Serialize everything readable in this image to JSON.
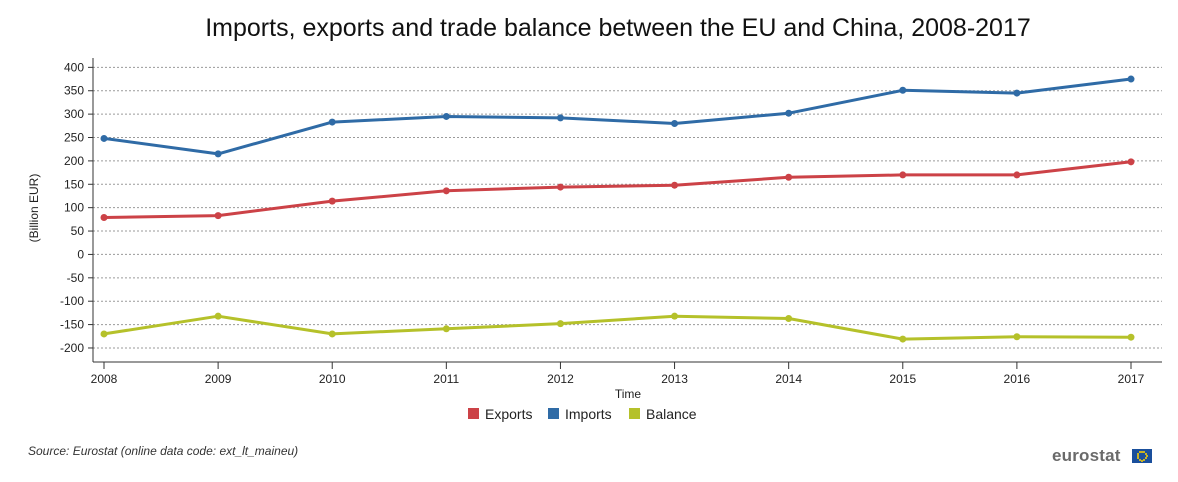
{
  "chart_data": {
    "type": "line",
    "title": "Imports, exports and trade balance between the EU and China, 2008-2017",
    "xlabel": "Time",
    "ylabel": "(Billion EUR)",
    "x": [
      "2008",
      "2009",
      "2010",
      "2011",
      "2012",
      "2013",
      "2014",
      "2015",
      "2016",
      "2017"
    ],
    "ylim": [
      -230,
      420
    ],
    "yticks": [
      400,
      350,
      300,
      250,
      200,
      150,
      100,
      50,
      0,
      -50,
      -100,
      -150,
      -200
    ],
    "grid": true,
    "legend_position": "bottom-center",
    "series": [
      {
        "name": "Exports",
        "color": "#cc4247",
        "values": [
          79,
          83,
          114,
          136,
          144,
          148,
          165,
          170,
          170,
          198
        ]
      },
      {
        "name": "Imports",
        "color": "#2f6ba6",
        "values": [
          248,
          215,
          283,
          295,
          292,
          280,
          302,
          351,
          345,
          375
        ]
      },
      {
        "name": "Balance",
        "color": "#b5c12a",
        "values": [
          -170,
          -132,
          -170,
          -159,
          -148,
          -132,
          -137,
          -181,
          -176,
          -177
        ]
      }
    ]
  },
  "footer": {
    "source": "Source: Eurostat (online data code: ext_lt_maineu)",
    "brand": "eurostat"
  }
}
